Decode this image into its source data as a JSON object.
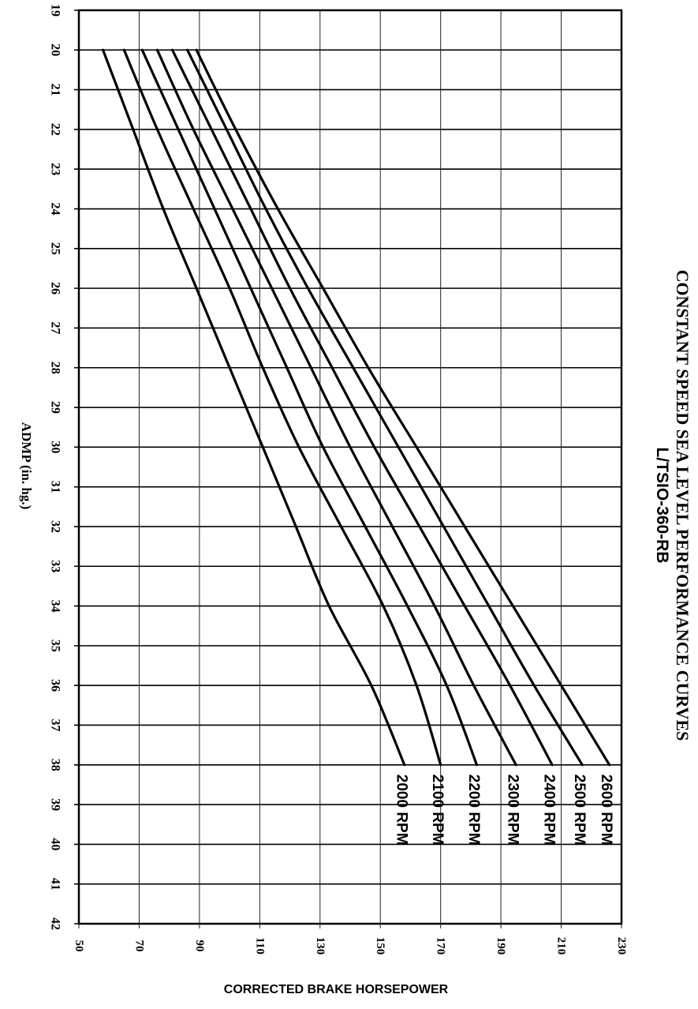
{
  "chart_data": {
    "type": "line",
    "title": "CONSTANT SPEED SEA LEVEL PERFORMANCE CURVES",
    "subtitle": "L/TSIO-360-RB",
    "xlabel": "ADMP (in. hg.)",
    "ylabel": "CORRECTED BRAKE HORSEPOWER",
    "x_ticks": [
      "19",
      "20",
      "21",
      "22",
      "23",
      "24",
      "25",
      "26",
      "27",
      "28",
      "29",
      "30",
      "31",
      "32",
      "33",
      "34",
      "35",
      "36",
      "37",
      "38",
      "39",
      "40",
      "41",
      "42"
    ],
    "y_ticks": [
      "50",
      "70",
      "90",
      "110",
      "130",
      "150",
      "170",
      "190",
      "210",
      "230"
    ],
    "xlim": [
      19,
      42
    ],
    "ylim": [
      50,
      230
    ],
    "grid": true,
    "orientation": "rotated-90-clockwise",
    "series": [
      {
        "name": "2000 RPM",
        "x": [
          20,
          22,
          24,
          26,
          28,
          30,
          32,
          34,
          36,
          38
        ],
        "y": [
          58,
          68,
          78,
          89,
          100,
          111,
          122,
          133,
          147,
          158
        ]
      },
      {
        "name": "2100 RPM",
        "x": [
          20,
          22,
          24,
          26,
          28,
          30,
          32,
          34,
          36,
          38
        ],
        "y": [
          65,
          76,
          88,
          100,
          111,
          123,
          137,
          151,
          162,
          170
        ]
      },
      {
        "name": "2200 RPM",
        "x": [
          20,
          22,
          24,
          26,
          28,
          30,
          32,
          34,
          36,
          38
        ],
        "y": [
          71,
          83,
          95,
          107,
          119,
          131,
          145,
          159,
          172,
          182
        ]
      },
      {
        "name": "2300 RPM",
        "x": [
          20,
          22,
          24,
          26,
          28,
          30,
          32,
          34,
          36,
          38
        ],
        "y": [
          76,
          88,
          101,
          114,
          127,
          140,
          154,
          168,
          181,
          195
        ]
      },
      {
        "name": "2400 RPM",
        "x": [
          20,
          22,
          24,
          26,
          28,
          30,
          32,
          34,
          36,
          38
        ],
        "y": [
          81,
          94,
          107,
          120,
          134,
          148,
          163,
          178,
          193,
          207
        ]
      },
      {
        "name": "2500 RPM",
        "x": [
          20,
          22,
          24,
          26,
          28,
          30,
          32,
          34,
          36,
          38
        ],
        "y": [
          86,
          99,
          112,
          126,
          141,
          156,
          171,
          186,
          201,
          217
        ]
      },
      {
        "name": "2600 RPM",
        "x": [
          20,
          22,
          24,
          26,
          28,
          30,
          32,
          34,
          36,
          38
        ],
        "y": [
          89,
          102,
          116,
          131,
          146,
          162,
          178,
          194,
          210,
          226
        ]
      }
    ]
  }
}
